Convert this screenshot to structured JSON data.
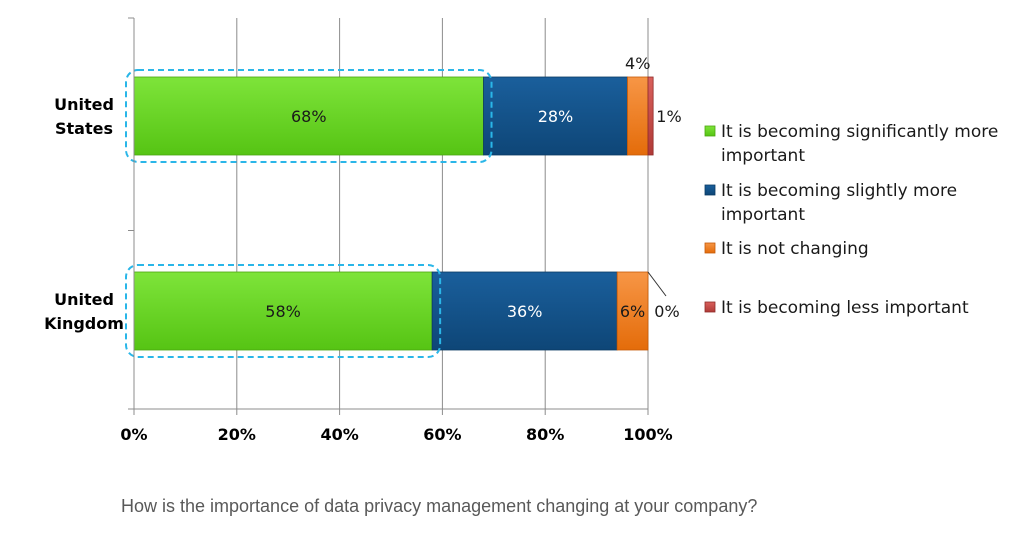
{
  "chart_data": {
    "type": "bar",
    "orientation": "horizontal",
    "stacked": true,
    "categories": [
      "United States",
      "United Kingdom"
    ],
    "series": [
      {
        "name": "It is becoming significantly more important",
        "values": [
          68,
          58
        ],
        "labels": [
          "68%",
          "58%"
        ],
        "color": "#66d81f"
      },
      {
        "name": "It is becoming slightly more important",
        "values": [
          28,
          36
        ],
        "labels": [
          "28%",
          "36%"
        ],
        "color": "#12528a"
      },
      {
        "name": "It is not changing",
        "values": [
          4,
          6
        ],
        "labels": [
          "4%",
          "6%"
        ],
        "color": "#f07d21"
      },
      {
        "name": "It is becoming less important",
        "values": [
          1,
          0
        ],
        "labels": [
          "1%",
          "0%"
        ],
        "color": "#c0504d"
      }
    ],
    "xlim": [
      0,
      100
    ],
    "xticks": [
      "0%",
      "20%",
      "40%",
      "60%",
      "80%",
      "100%"
    ],
    "grid": true,
    "legend_position": "right",
    "highlight": "dashed outline around first series bars"
  },
  "caption": "How is the importance of data privacy management changing at your company?"
}
